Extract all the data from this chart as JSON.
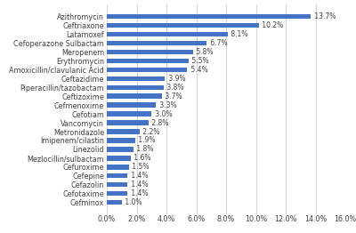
{
  "categories": [
    "Cefminox",
    "Cefotaxime",
    "Cefazolin",
    "Cefepine",
    "Cefuroxime",
    "Mezlocillin/sulbactam",
    "Linezolid",
    "Imipenem/cilastin",
    "Metronidazole",
    "Vancomycin",
    "Cefotiam",
    "Cefmenoxime",
    "Ceftizoxime",
    "Piperacillin/tazobactam",
    "Ceftazidime",
    "Amoxicillin/clavulanic Acid",
    "Erythromycin",
    "Meropenem",
    "Cefoperazone Sulbactam",
    "Latamoxef",
    "Ceftriaxone",
    "Azithromycin"
  ],
  "values": [
    1.0,
    1.4,
    1.4,
    1.4,
    1.5,
    1.6,
    1.8,
    1.9,
    2.2,
    2.8,
    3.0,
    3.3,
    3.7,
    3.8,
    3.9,
    5.4,
    5.5,
    5.8,
    6.7,
    8.1,
    10.2,
    13.7
  ],
  "bar_color": "#4472C4",
  "label_color": "#404040",
  "background_color": "#ffffff",
  "grid_color": "#c0c0c0",
  "xlim": [
    0,
    16.0
  ],
  "xticks": [
    0,
    2.0,
    4.0,
    6.0,
    8.0,
    10.0,
    12.0,
    14.0,
    16.0
  ],
  "xtick_labels": [
    "0.0%",
    "2.0%",
    "4.0%",
    "6.0%",
    "8.0%",
    "10.0%",
    "12.0%",
    "14.0%",
    "16.0%"
  ],
  "bar_height": 0.55,
  "fontsize_labels": 5.8,
  "fontsize_values": 5.5,
  "fontsize_xticks": 5.8
}
